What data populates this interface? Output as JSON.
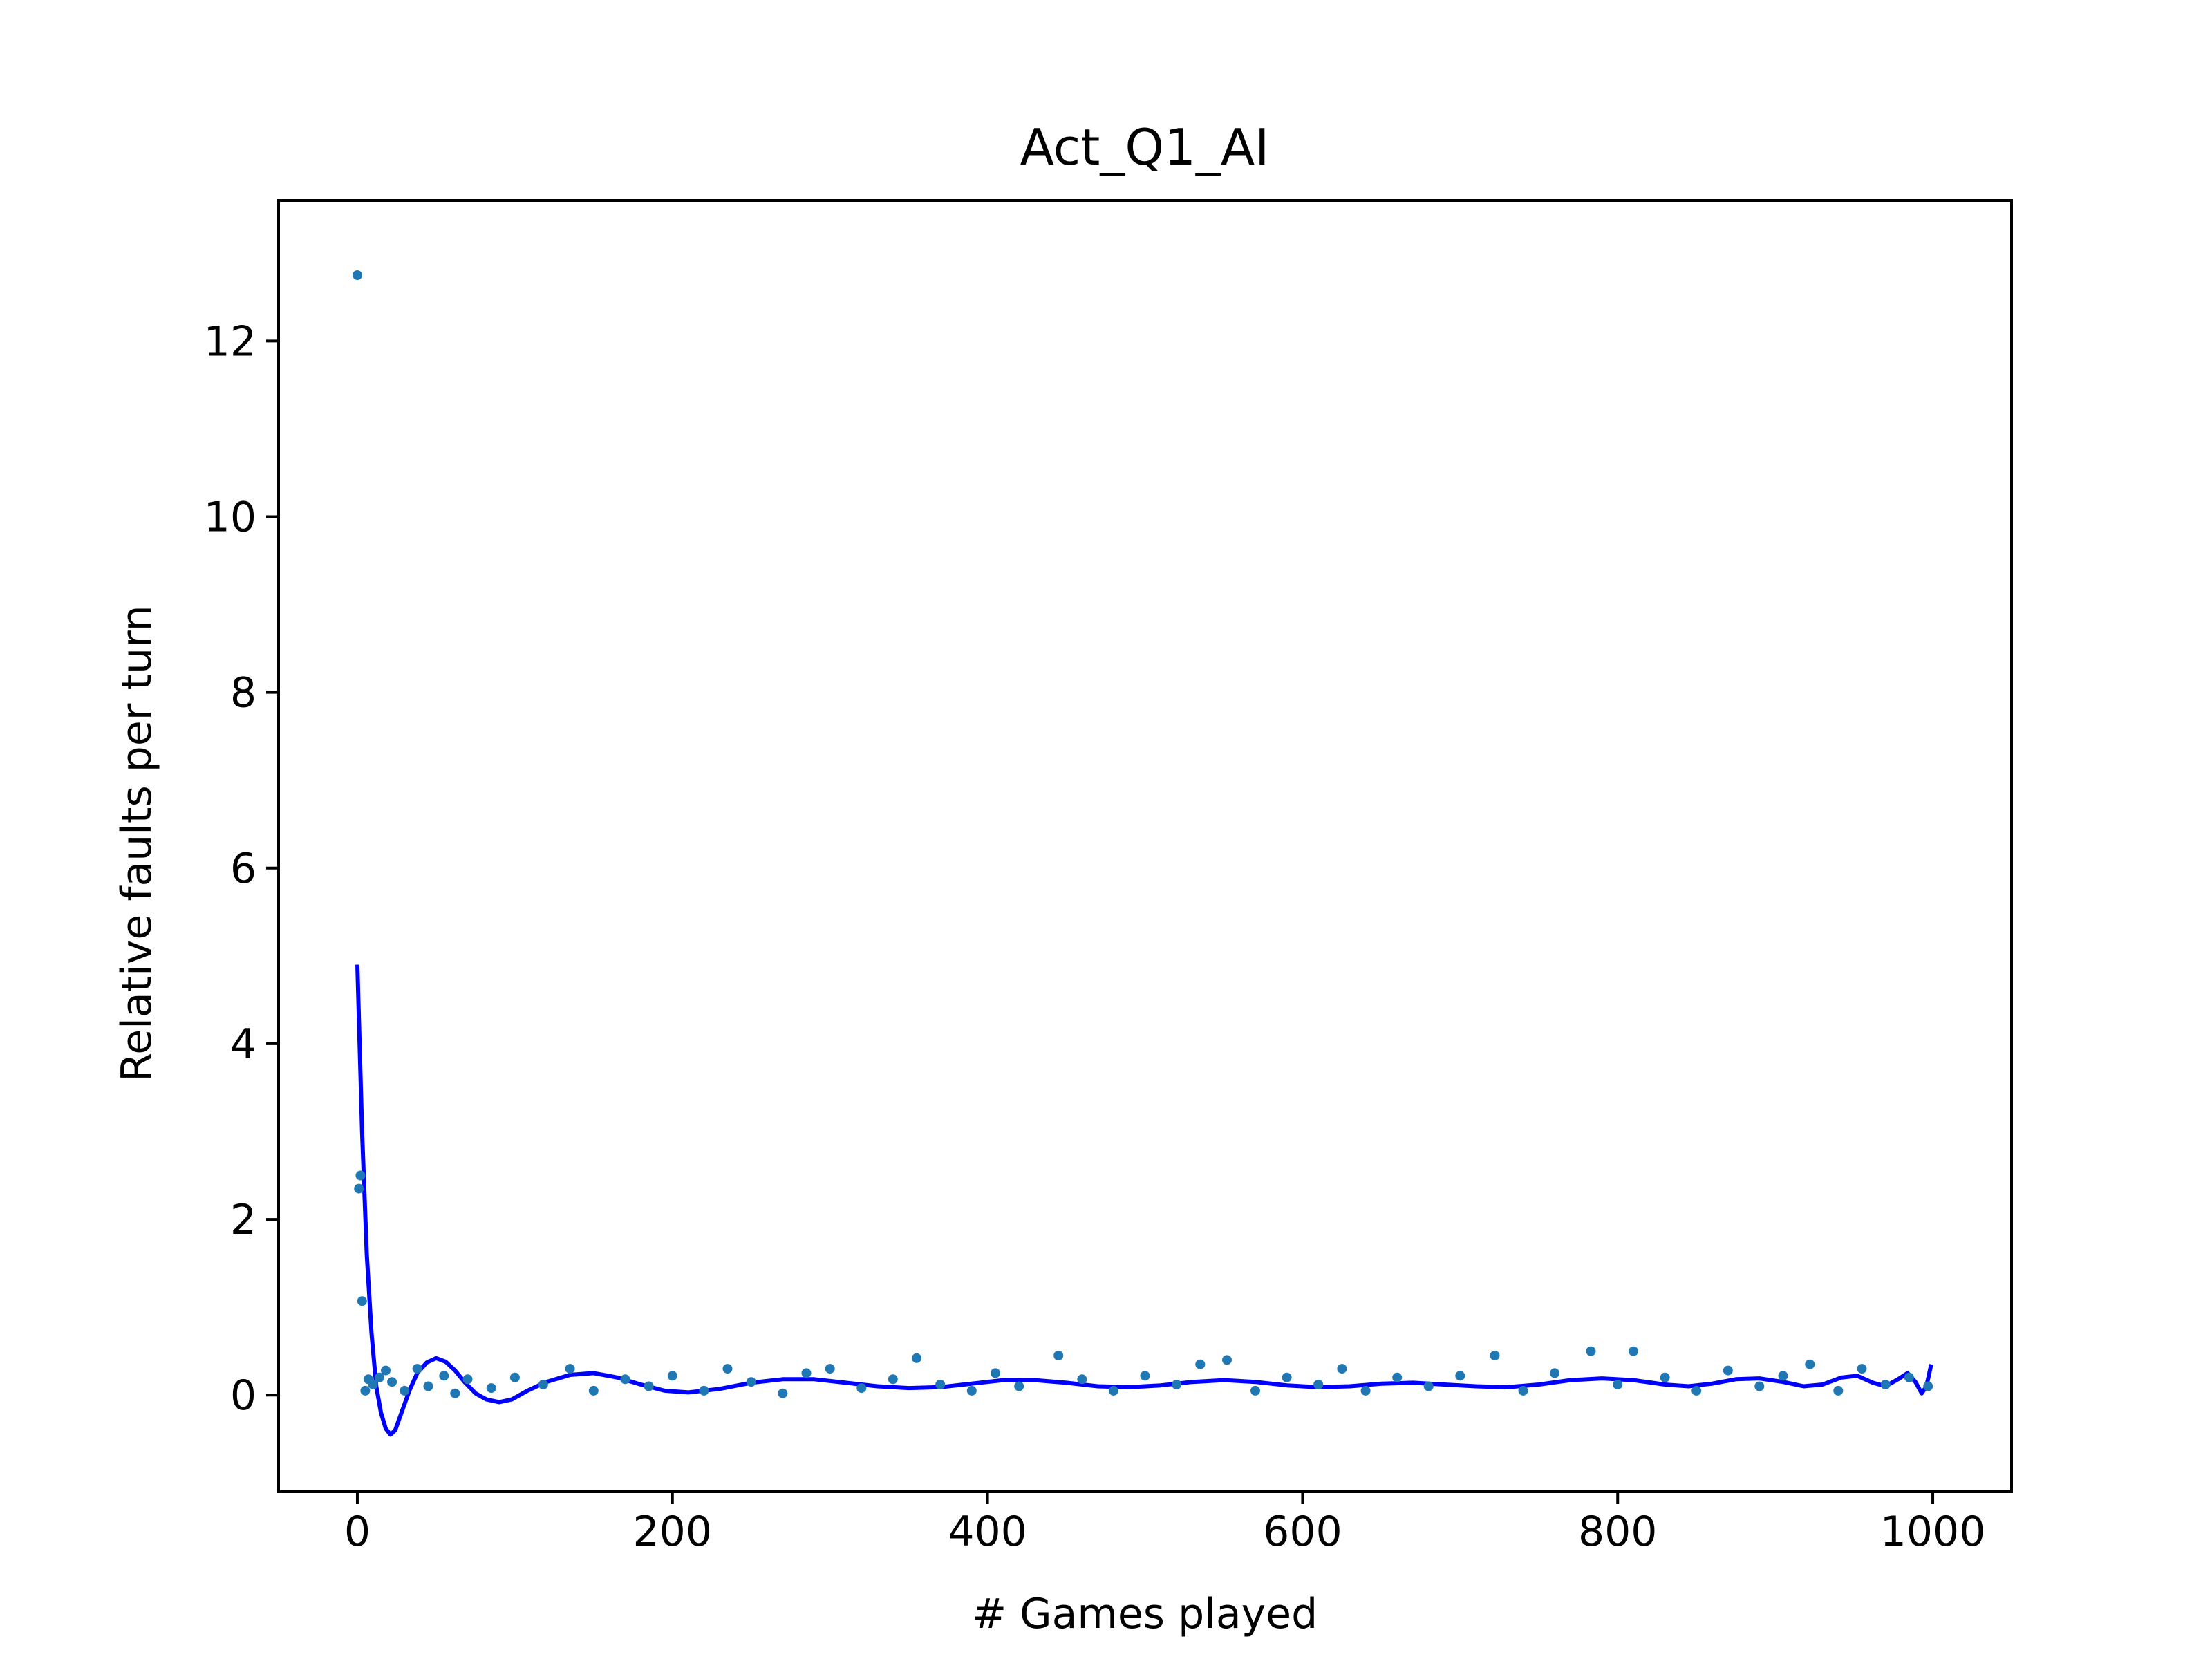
{
  "chart_data": {
    "type": "scatter",
    "title": "Act_Q1_AI",
    "xlabel": "# Games played",
    "ylabel": "Relative faults per turn",
    "xlim": [
      -50,
      1050
    ],
    "ylim": [
      -1.1,
      13.6
    ],
    "x_ticks": [
      0,
      200,
      400,
      600,
      800,
      1000
    ],
    "x_tick_labels": [
      "0",
      "200",
      "400",
      "600",
      "800",
      "1000"
    ],
    "y_ticks": [
      0,
      2,
      4,
      6,
      8,
      10,
      12
    ],
    "y_tick_labels": [
      "0",
      "2",
      "4",
      "6",
      "8",
      "10",
      "12"
    ],
    "grid": false,
    "legend": "none",
    "colors": {
      "scatter": "#1f77b4",
      "fit": "#0000ff",
      "axes": "#000000"
    },
    "series": [
      {
        "kind": "scatter",
        "points": [
          [
            0,
            12.75
          ],
          [
            1,
            2.35
          ],
          [
            2,
            2.5
          ],
          [
            3,
            1.07
          ],
          [
            5,
            0.05
          ],
          [
            7,
            0.18
          ],
          [
            10,
            0.12
          ],
          [
            14,
            0.2
          ],
          [
            18,
            0.28
          ],
          [
            22,
            0.15
          ],
          [
            30,
            0.05
          ],
          [
            38,
            0.3
          ],
          [
            45,
            0.1
          ],
          [
            55,
            0.22
          ],
          [
            62,
            0.02
          ],
          [
            70,
            0.18
          ],
          [
            85,
            0.08
          ],
          [
            100,
            0.2
          ],
          [
            118,
            0.12
          ],
          [
            135,
            0.3
          ],
          [
            150,
            0.05
          ],
          [
            170,
            0.18
          ],
          [
            185,
            0.1
          ],
          [
            200,
            0.22
          ],
          [
            220,
            0.05
          ],
          [
            235,
            0.3
          ],
          [
            250,
            0.15
          ],
          [
            270,
            0.02
          ],
          [
            285,
            0.25
          ],
          [
            300,
            0.3
          ],
          [
            320,
            0.08
          ],
          [
            340,
            0.18
          ],
          [
            355,
            0.42
          ],
          [
            370,
            0.12
          ],
          [
            390,
            0.05
          ],
          [
            405,
            0.25
          ],
          [
            420,
            0.1
          ],
          [
            445,
            0.45
          ],
          [
            460,
            0.18
          ],
          [
            480,
            0.05
          ],
          [
            500,
            0.22
          ],
          [
            520,
            0.12
          ],
          [
            535,
            0.35
          ],
          [
            552,
            0.4
          ],
          [
            570,
            0.05
          ],
          [
            590,
            0.2
          ],
          [
            610,
            0.12
          ],
          [
            625,
            0.3
          ],
          [
            640,
            0.05
          ],
          [
            660,
            0.2
          ],
          [
            680,
            0.1
          ],
          [
            700,
            0.22
          ],
          [
            722,
            0.45
          ],
          [
            740,
            0.05
          ],
          [
            760,
            0.25
          ],
          [
            783,
            0.5
          ],
          [
            800,
            0.12
          ],
          [
            810,
            0.5
          ],
          [
            830,
            0.2
          ],
          [
            850,
            0.05
          ],
          [
            870,
            0.28
          ],
          [
            890,
            0.1
          ],
          [
            905,
            0.22
          ],
          [
            922,
            0.35
          ],
          [
            940,
            0.05
          ],
          [
            955,
            0.3
          ],
          [
            970,
            0.12
          ],
          [
            985,
            0.2
          ],
          [
            997,
            0.1
          ]
        ]
      },
      {
        "kind": "line",
        "points": [
          [
            0,
            4.9
          ],
          [
            3,
            3.0
          ],
          [
            6,
            1.6
          ],
          [
            9,
            0.7
          ],
          [
            12,
            0.1
          ],
          [
            15,
            -0.2
          ],
          [
            18,
            -0.38
          ],
          [
            21,
            -0.45
          ],
          [
            24,
            -0.4
          ],
          [
            28,
            -0.2
          ],
          [
            33,
            0.05
          ],
          [
            38,
            0.25
          ],
          [
            44,
            0.37
          ],
          [
            50,
            0.42
          ],
          [
            56,
            0.38
          ],
          [
            62,
            0.28
          ],
          [
            68,
            0.15
          ],
          [
            75,
            0.02
          ],
          [
            82,
            -0.05
          ],
          [
            90,
            -0.08
          ],
          [
            98,
            -0.05
          ],
          [
            108,
            0.05
          ],
          [
            120,
            0.15
          ],
          [
            135,
            0.23
          ],
          [
            150,
            0.25
          ],
          [
            165,
            0.2
          ],
          [
            180,
            0.12
          ],
          [
            195,
            0.05
          ],
          [
            210,
            0.03
          ],
          [
            230,
            0.07
          ],
          [
            250,
            0.14
          ],
          [
            270,
            0.18
          ],
          [
            290,
            0.18
          ],
          [
            310,
            0.14
          ],
          [
            330,
            0.1
          ],
          [
            350,
            0.08
          ],
          [
            370,
            0.09
          ],
          [
            390,
            0.13
          ],
          [
            410,
            0.17
          ],
          [
            430,
            0.17
          ],
          [
            450,
            0.14
          ],
          [
            470,
            0.1
          ],
          [
            490,
            0.09
          ],
          [
            510,
            0.11
          ],
          [
            530,
            0.15
          ],
          [
            550,
            0.17
          ],
          [
            570,
            0.15
          ],
          [
            590,
            0.11
          ],
          [
            610,
            0.09
          ],
          [
            630,
            0.1
          ],
          [
            650,
            0.13
          ],
          [
            670,
            0.14
          ],
          [
            690,
            0.12
          ],
          [
            710,
            0.1
          ],
          [
            730,
            0.09
          ],
          [
            750,
            0.12
          ],
          [
            770,
            0.17
          ],
          [
            790,
            0.19
          ],
          [
            810,
            0.17
          ],
          [
            830,
            0.12
          ],
          [
            845,
            0.1
          ],
          [
            860,
            0.13
          ],
          [
            875,
            0.18
          ],
          [
            890,
            0.19
          ],
          [
            905,
            0.15
          ],
          [
            918,
            0.1
          ],
          [
            930,
            0.12
          ],
          [
            942,
            0.2
          ],
          [
            952,
            0.22
          ],
          [
            962,
            0.14
          ],
          [
            970,
            0.1
          ],
          [
            978,
            0.18
          ],
          [
            984,
            0.25
          ],
          [
            989,
            0.15
          ],
          [
            993,
            0.02
          ],
          [
            996,
            0.1
          ],
          [
            999,
            0.35
          ]
        ]
      }
    ]
  }
}
